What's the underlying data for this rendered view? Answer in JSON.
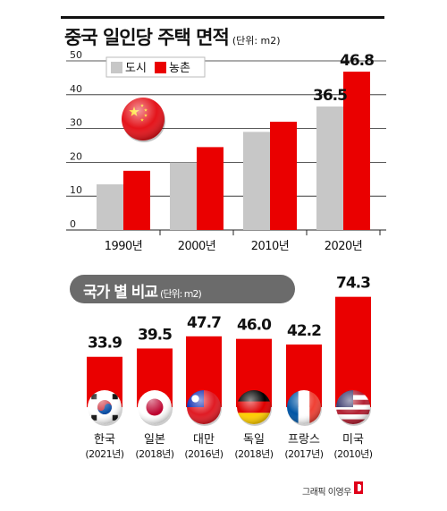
{
  "header": {
    "title": "중국 일인당 주택 면적",
    "unit": "(단위: m2)"
  },
  "colors": {
    "city": "#c7c7c7",
    "rural": "#ea0000",
    "pill": "#6b6b6b"
  },
  "chart_data": [
    {
      "type": "bar",
      "title": "중국 일인당 주택 면적",
      "unit": "(단위: m2)",
      "categories": [
        "1990년",
        "2000년",
        "2010년",
        "2020년"
      ],
      "series": [
        {
          "name": "도시",
          "values": [
            13.5,
            20.0,
            29.0,
            36.5
          ]
        },
        {
          "name": "농촌",
          "values": [
            17.5,
            24.5,
            32.0,
            46.8
          ]
        }
      ],
      "data_labels": {
        "3": [
          "36.5",
          "46.8"
        ]
      },
      "ylim": [
        0,
        50
      ],
      "yticks": [
        0,
        10,
        20,
        30,
        40,
        50
      ],
      "grid": true,
      "legend": "top-left",
      "flag_icon": "china-flag-icon"
    },
    {
      "type": "bar",
      "title": "국가 별 비교",
      "unit": "(단위: m2)",
      "categories": [
        "한국",
        "일본",
        "대만",
        "독일",
        "프랑스",
        "미국"
      ],
      "years": [
        "(2021년)",
        "(2018년)",
        "(2016년)",
        "(2018년)",
        "(2017년)",
        "(2010년)"
      ],
      "values": [
        33.9,
        39.5,
        47.7,
        46.0,
        42.2,
        74.3
      ],
      "labels": [
        "33.9",
        "39.5",
        "47.7",
        "46.0",
        "42.2",
        "74.3"
      ],
      "flag_icons": [
        "korea-flag-icon",
        "japan-flag-icon",
        "taiwan-flag-icon",
        "germany-flag-icon",
        "france-flag-icon",
        "usa-flag-icon"
      ]
    }
  ],
  "comparison": {
    "title": "국가 별 비교",
    "unit": "(단위: m2)"
  },
  "credit": {
    "text": "그래픽 이영우"
  }
}
